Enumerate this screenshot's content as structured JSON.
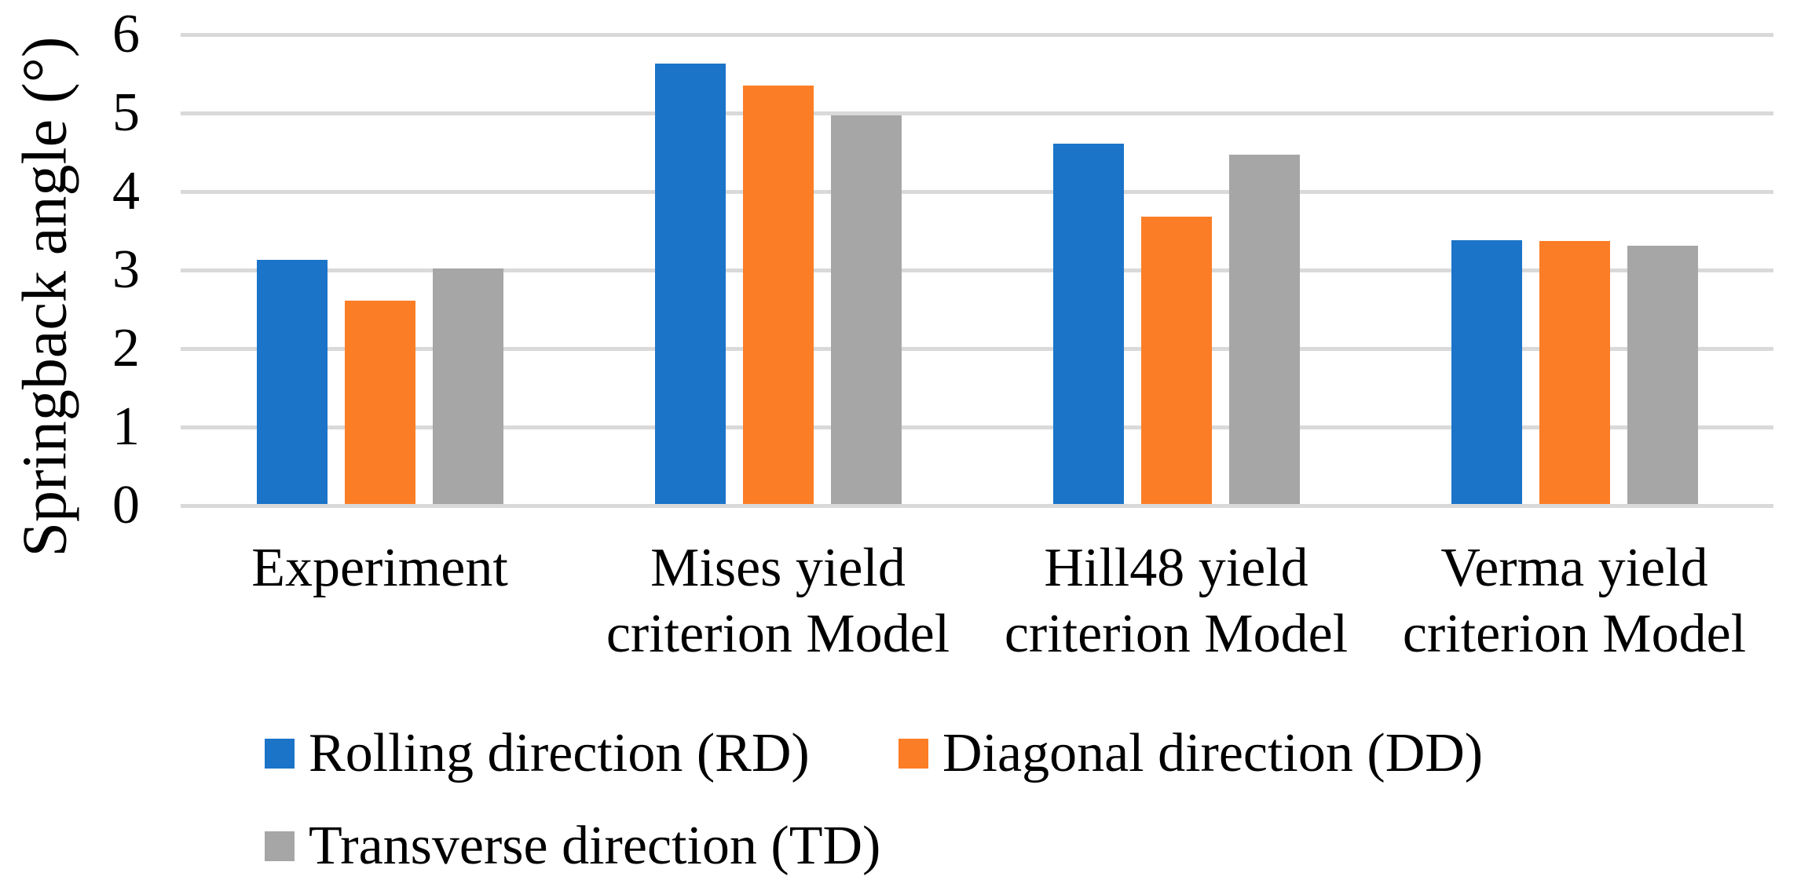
{
  "figure_role": "clustered-bar-chart-of-springback-angles",
  "colors": {
    "background": "#ffffff",
    "gridline": "#d9d9d9",
    "text": "#000000",
    "series_rd_blue": "#1b74c8",
    "series_dd_orange": "#fb7d26",
    "series_td_gray": "#a6a6a6"
  },
  "chart_data": {
    "type": "bar",
    "title": "",
    "xlabel": "",
    "ylabel": "Springback angle (°)",
    "ylim": [
      0,
      6
    ],
    "yticks": [
      0,
      1,
      2,
      3,
      4,
      5,
      6
    ],
    "grid": true,
    "gridline_color": "#d9d9d9",
    "legend_position": "bottom",
    "categories": [
      "Experiment",
      "Mises yield criterion Model",
      "Hill48 yield criterion Model",
      "Verma yield criterion Model"
    ],
    "categories_lines": [
      [
        "Experiment"
      ],
      [
        "Mises yield",
        "criterion Model"
      ],
      [
        "Hill48 yield",
        "criterion Model"
      ],
      [
        "Verma yield",
        "criterion Model"
      ]
    ],
    "series": [
      {
        "name": "Rolling direction (RD)",
        "color": "#1b74c8",
        "values": [
          3.11,
          5.61,
          4.59,
          3.36
        ]
      },
      {
        "name": "Diagonal direction (DD)",
        "color": "#fb7d26",
        "values": [
          2.59,
          5.33,
          3.66,
          3.35
        ]
      },
      {
        "name": "Transverse direction (TD)",
        "color": "#a6a6a6",
        "values": [
          3.0,
          4.95,
          4.45,
          3.29
        ]
      }
    ]
  }
}
